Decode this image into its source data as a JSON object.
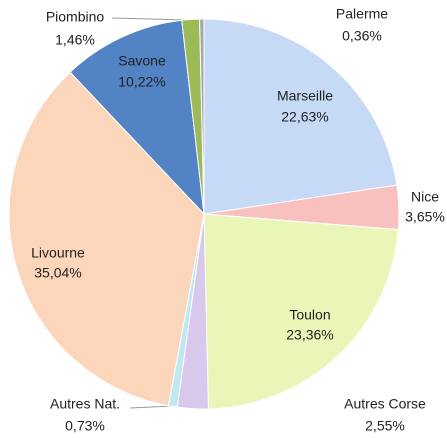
{
  "chart_data": {
    "type": "pie",
    "categories": [
      "Marseille",
      "Nice",
      "Toulon",
      "Autres Corse",
      "Autres Nat.",
      "Livourne",
      "Savone",
      "Piombino",
      "Palerme"
    ],
    "values": [
      22.63,
      3.65,
      23.36,
      2.55,
      0.73,
      35.04,
      10.22,
      1.46,
      0.36
    ],
    "value_labels": [
      "22,63%",
      "3,65%",
      "23,36%",
      "2,55%",
      "0,73%",
      "35,04%",
      "10,22%",
      "1,46%",
      "0,36%"
    ],
    "colors": [
      "#c6d9f5",
      "#f9c0c0",
      "#eaf6b8",
      "#d8c8ec",
      "#bfe8f2",
      "#fbd6bb",
      "#5283c4",
      "#9bbb59",
      "#a6a6a6"
    ]
  }
}
